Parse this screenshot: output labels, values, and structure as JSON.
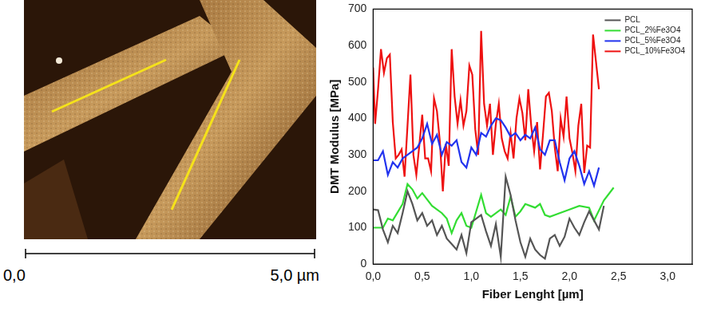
{
  "chart_data": {
    "type": "line",
    "x_label": "Fiber Lenght [µm]",
    "y_label": "DMT Modulus [MPa]",
    "xlim": [
      0,
      3.25
    ],
    "xticks": [
      {
        "value": 0,
        "label": "0,0"
      },
      {
        "value": 0.5,
        "label": "0,5"
      },
      {
        "value": 1,
        "label": "1,0"
      },
      {
        "value": 1.5,
        "label": "1,5"
      },
      {
        "value": 2,
        "label": "2,0"
      },
      {
        "value": 2.5,
        "label": "2,5"
      },
      {
        "value": 3,
        "label": "3,0"
      }
    ],
    "ylim": [
      0,
      700
    ],
    "yticks": [
      0,
      100,
      200,
      300,
      400,
      500,
      600,
      700
    ],
    "grid": false,
    "legend": "upper right",
    "series": [
      {
        "name": "PCL",
        "color": "#555555",
        "x": [
          0,
          0.05,
          0.1,
          0.15,
          0.2,
          0.25,
          0.3,
          0.35,
          0.4,
          0.45,
          0.5,
          0.55,
          0.6,
          0.65,
          0.7,
          0.75,
          0.8,
          0.85,
          0.9,
          0.95,
          1.0,
          1.05,
          1.1,
          1.15,
          1.2,
          1.25,
          1.3,
          1.35,
          1.4,
          1.45,
          1.5,
          1.55,
          1.6,
          1.65,
          1.7,
          1.75,
          1.8,
          1.85,
          1.9,
          1.95,
          2.0,
          2.05,
          2.1,
          2.15,
          2.2,
          2.25,
          2.3,
          2.35
        ],
        "values": [
          150,
          148,
          95,
          60,
          105,
          85,
          140,
          200,
          165,
          120,
          140,
          105,
          120,
          80,
          105,
          70,
          55,
          40,
          80,
          30,
          115,
          125,
          135,
          90,
          50,
          110,
          20,
          240,
          190,
          120,
          60,
          20,
          70,
          40,
          25,
          15,
          70,
          80,
          50,
          75,
          125,
          100,
          80,
          115,
          145,
          120,
          95,
          160
        ]
      },
      {
        "name": "PCL_2%Fe3O4",
        "color": "#33dd33",
        "x": [
          0,
          0.1,
          0.15,
          0.2,
          0.3,
          0.35,
          0.4,
          0.45,
          0.5,
          0.6,
          0.7,
          0.75,
          0.8,
          0.85,
          0.9,
          0.95,
          1.0,
          1.05,
          1.1,
          1.15,
          1.2,
          1.3,
          1.35,
          1.4,
          1.45,
          1.5,
          1.55,
          1.6,
          1.65,
          1.7,
          1.75,
          1.8,
          1.9,
          2.0,
          2.1,
          2.2,
          2.25,
          2.35,
          2.45
        ],
        "values": [
          100,
          100,
          125,
          120,
          165,
          220,
          205,
          180,
          195,
          160,
          140,
          125,
          85,
          120,
          140,
          105,
          100,
          145,
          190,
          140,
          130,
          150,
          135,
          185,
          130,
          145,
          165,
          160,
          155,
          165,
          135,
          130,
          140,
          150,
          160,
          155,
          120,
          175,
          210
        ]
      },
      {
        "name": "PCL_5%Fe3O4",
        "color": "#2233ee",
        "x": [
          0,
          0.05,
          0.1,
          0.15,
          0.2,
          0.25,
          0.3,
          0.35,
          0.4,
          0.45,
          0.5,
          0.55,
          0.6,
          0.65,
          0.7,
          0.75,
          0.8,
          0.85,
          0.9,
          0.95,
          1.0,
          1.05,
          1.1,
          1.15,
          1.2,
          1.25,
          1.3,
          1.35,
          1.4,
          1.45,
          1.5,
          1.55,
          1.6,
          1.65,
          1.7,
          1.75,
          1.8,
          1.85,
          1.9,
          1.95,
          2.0,
          2.05,
          2.1,
          2.15,
          2.2,
          2.25,
          2.3
        ],
        "values": [
          285,
          285,
          310,
          245,
          280,
          265,
          290,
          300,
          310,
          320,
          345,
          385,
          330,
          355,
          300,
          335,
          325,
          340,
          280,
          265,
          320,
          300,
          360,
          350,
          380,
          400,
          395,
          375,
          350,
          360,
          340,
          355,
          345,
          375,
          315,
          300,
          340,
          340,
          280,
          230,
          290,
          310,
          270,
          220,
          255,
          215,
          265
        ]
      },
      {
        "name": "PCL_10%Fe3O4",
        "color": "#ee1111",
        "x": [
          0,
          0.02,
          0.05,
          0.08,
          0.11,
          0.14,
          0.17,
          0.2,
          0.23,
          0.26,
          0.29,
          0.32,
          0.35,
          0.38,
          0.41,
          0.44,
          0.47,
          0.5,
          0.53,
          0.56,
          0.59,
          0.62,
          0.65,
          0.68,
          0.71,
          0.74,
          0.77,
          0.8,
          0.83,
          0.86,
          0.89,
          0.92,
          0.95,
          0.98,
          1.01,
          1.04,
          1.07,
          1.1,
          1.13,
          1.16,
          1.19,
          1.22,
          1.25,
          1.28,
          1.31,
          1.34,
          1.37,
          1.4,
          1.43,
          1.46,
          1.49,
          1.52,
          1.55,
          1.58,
          1.61,
          1.64,
          1.67,
          1.7,
          1.73,
          1.76,
          1.79,
          1.82,
          1.85,
          1.88,
          1.91,
          1.94,
          1.97,
          2.0,
          2.03,
          2.06,
          2.09,
          2.12,
          2.15,
          2.18,
          2.21,
          2.24,
          2.27,
          2.3
        ],
        "values": [
          540,
          385,
          480,
          590,
          525,
          565,
          575,
          390,
          290,
          300,
          315,
          240,
          380,
          520,
          300,
          245,
          325,
          410,
          290,
          290,
          255,
          455,
          420,
          335,
          200,
          330,
          270,
          590,
          460,
          385,
          450,
          380,
          420,
          545,
          520,
          370,
          300,
          640,
          440,
          380,
          440,
          300,
          385,
          440,
          345,
          310,
          290,
          360,
          290,
          400,
          455,
          415,
          340,
          480,
          380,
          310,
          390,
          260,
          355,
          460,
          470,
          420,
          320,
          255,
          400,
          350,
          460,
          345,
          305,
          255,
          380,
          440,
          250,
          325,
          320,
          630,
          555,
          480
        ]
      }
    ]
  },
  "image_panel": {
    "scale_bar": {
      "start_label": "0,0",
      "end_label": "5,0 µm"
    }
  }
}
